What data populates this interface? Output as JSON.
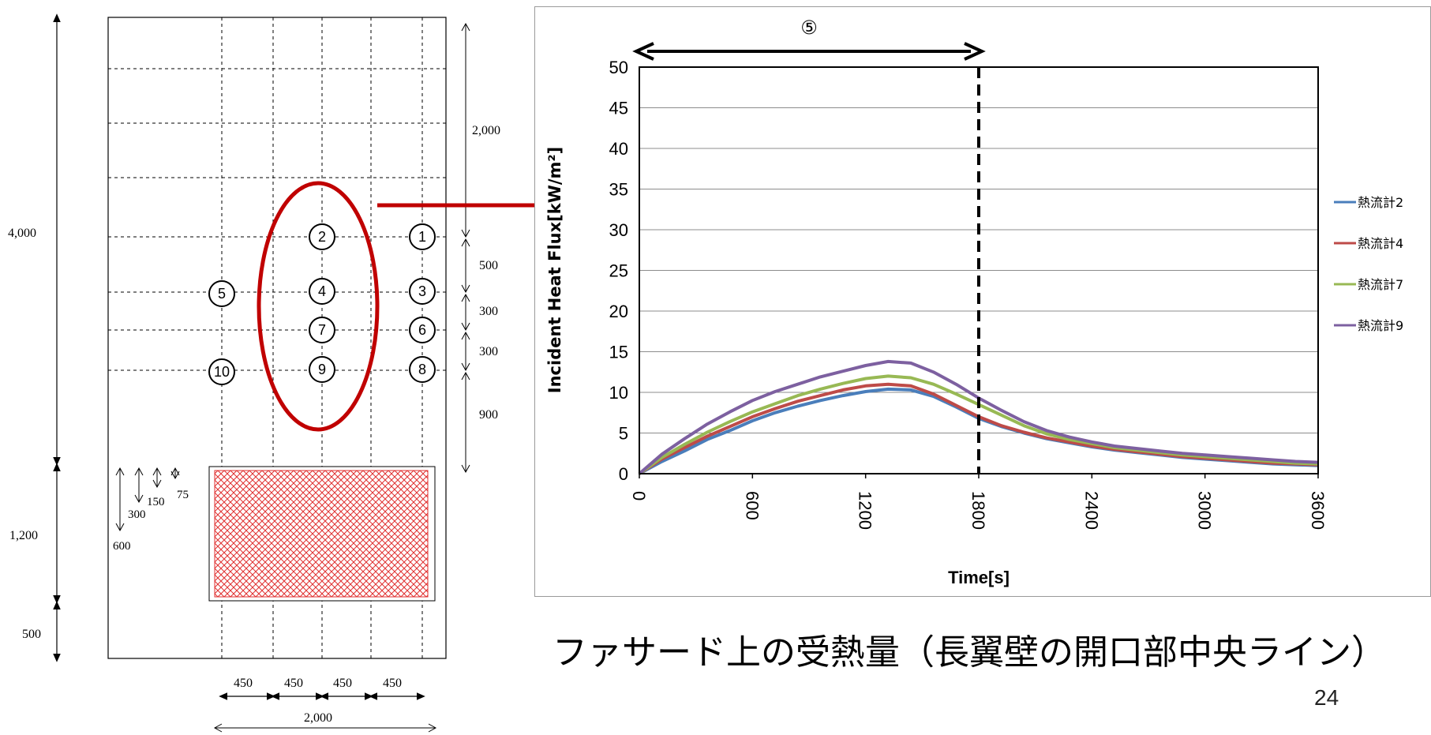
{
  "diagram": {
    "dims_right": [
      "2,000",
      "500",
      "300",
      "300",
      "900"
    ],
    "dims_left": [
      "4,000",
      "1,200",
      "500"
    ],
    "dims_bottom": [
      "450",
      "450",
      "450",
      "450"
    ],
    "total_width": "2,000",
    "burner_dims": [
      "75",
      "150",
      "300",
      "600"
    ],
    "markers": [
      "1",
      "2",
      "3",
      "4",
      "5",
      "6",
      "7",
      "8",
      "9",
      "10"
    ]
  },
  "chart_data": {
    "type": "line",
    "title": "⑤",
    "xlabel": "Time[s]",
    "ylabel": "Incident Heat Flux[kW/m²]",
    "xlim": [
      0,
      3600
    ],
    "ylim": [
      0,
      50
    ],
    "xticks": [
      "0",
      "600",
      "1200",
      "1800",
      "2400",
      "3000",
      "3600"
    ],
    "yticks": [
      "0",
      "5",
      "10",
      "15",
      "20",
      "25",
      "30",
      "35",
      "40",
      "45",
      "50"
    ],
    "grid": "horizontal",
    "legend_position": "right",
    "marker_line_x": 1800,
    "span_arrow": [
      0,
      1800
    ],
    "x": [
      0,
      120,
      240,
      360,
      480,
      600,
      720,
      840,
      960,
      1080,
      1200,
      1320,
      1440,
      1560,
      1680,
      1800,
      1920,
      2040,
      2160,
      2280,
      2400,
      2520,
      2640,
      2760,
      2880,
      3000,
      3120,
      3240,
      3360,
      3480,
      3600
    ],
    "series": [
      {
        "name": "熱流計2",
        "color": "#4a7ebb",
        "values": [
          0,
          1.5,
          2.8,
          4.2,
          5.3,
          6.5,
          7.5,
          8.3,
          9.0,
          9.6,
          10.1,
          10.4,
          10.3,
          9.5,
          8.2,
          6.8,
          5.8,
          5.0,
          4.3,
          3.8,
          3.3,
          2.9,
          2.6,
          2.3,
          2.0,
          1.8,
          1.6,
          1.4,
          1.2,
          1.1,
          1.0
        ]
      },
      {
        "name": "熱流計4",
        "color": "#be4b48",
        "values": [
          0,
          1.8,
          3.2,
          4.6,
          5.8,
          7.0,
          8.0,
          8.9,
          9.6,
          10.3,
          10.8,
          11.0,
          10.8,
          9.8,
          8.4,
          7.0,
          5.9,
          5.1,
          4.4,
          3.9,
          3.4,
          3.0,
          2.7,
          2.4,
          2.1,
          1.9,
          1.7,
          1.5,
          1.3,
          1.2,
          1.1
        ]
      },
      {
        "name": "熱流計7",
        "color": "#98b954",
        "values": [
          0,
          2.0,
          3.6,
          5.1,
          6.4,
          7.6,
          8.6,
          9.6,
          10.4,
          11.1,
          11.7,
          12.0,
          11.8,
          11.0,
          9.8,
          8.5,
          7.2,
          5.9,
          4.9,
          4.2,
          3.7,
          3.2,
          2.9,
          2.6,
          2.3,
          2.1,
          1.9,
          1.7,
          1.5,
          1.3,
          1.2
        ]
      },
      {
        "name": "熱流計9",
        "color": "#7d60a0",
        "values": [
          0,
          2.4,
          4.3,
          6.1,
          7.6,
          9.0,
          10.1,
          11.0,
          11.9,
          12.6,
          13.3,
          13.8,
          13.6,
          12.5,
          11.0,
          9.3,
          7.8,
          6.4,
          5.3,
          4.5,
          3.9,
          3.4,
          3.1,
          2.8,
          2.5,
          2.3,
          2.1,
          1.9,
          1.7,
          1.5,
          1.4
        ]
      }
    ]
  },
  "caption": "ファサード上の受熱量（長翼壁の開口部中央ライン）",
  "page_number": "24"
}
